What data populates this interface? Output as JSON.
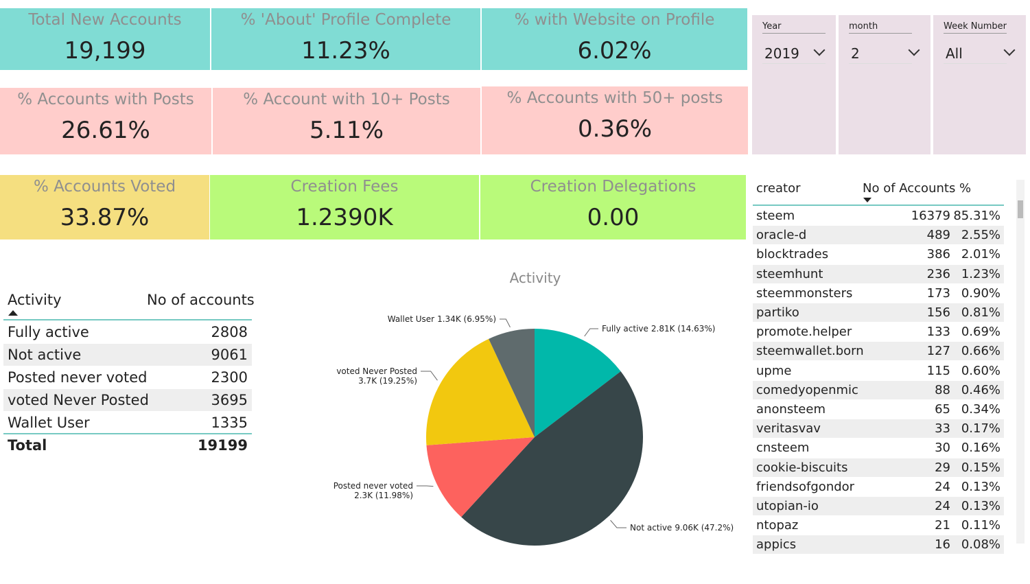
{
  "cards": [
    {
      "label": "Total New Accounts",
      "value": "19,199"
    },
    {
      "label": "% 'About' Profile Complete",
      "value": "11.23%"
    },
    {
      "label": "% with Website on Profile",
      "value": "6.02%"
    },
    {
      "label": "%  Accounts with Posts",
      "value": "26.61%"
    },
    {
      "label": "% Account with 10+ Posts",
      "value": "5.11%"
    },
    {
      "label": "% Accounts with 50+ posts",
      "value": "0.36%"
    },
    {
      "label": "% Accounts Voted",
      "value": "33.87%"
    },
    {
      "label": "Creation Fees",
      "value": "1.2390K"
    },
    {
      "label": "Creation Delegations",
      "value": "0.00"
    }
  ],
  "slicers": [
    {
      "label": "Year",
      "value": "2019"
    },
    {
      "label": "month",
      "value": "2"
    },
    {
      "label": "Week Number",
      "value": "All"
    }
  ],
  "activity_table": {
    "headers": [
      "Activity",
      "No of accounts"
    ],
    "rows": [
      [
        "Fully active",
        2808
      ],
      [
        "Not active",
        9061
      ],
      [
        "Posted never voted",
        2300
      ],
      [
        "voted Never Posted",
        3695
      ],
      [
        "Wallet User",
        1335
      ]
    ],
    "total": [
      "Total",
      19199
    ]
  },
  "creator_table": {
    "headers": [
      "creator",
      "No of Accounts",
      "%"
    ],
    "rows": [
      [
        "steem",
        16379,
        "85.31%"
      ],
      [
        "oracle-d",
        489,
        "2.55%"
      ],
      [
        "blocktrades",
        386,
        "2.01%"
      ],
      [
        "steemhunt",
        236,
        "1.23%"
      ],
      [
        "steemmonsters",
        173,
        "0.90%"
      ],
      [
        "partiko",
        156,
        "0.81%"
      ],
      [
        "promote.helper",
        133,
        "0.69%"
      ],
      [
        "steemwallet.born",
        127,
        "0.66%"
      ],
      [
        "upme",
        115,
        "0.60%"
      ],
      [
        "comedyopenmic",
        88,
        "0.46%"
      ],
      [
        "anonsteem",
        65,
        "0.34%"
      ],
      [
        "veritasvav",
        33,
        "0.17%"
      ],
      [
        "cnsteem",
        30,
        "0.16%"
      ],
      [
        "cookie-biscuits",
        29,
        "0.15%"
      ],
      [
        "friendsofgondor",
        24,
        "0.13%"
      ],
      [
        "utopian-io",
        24,
        "0.13%"
      ],
      [
        "ntopaz",
        21,
        "0.11%"
      ],
      [
        "appics",
        16,
        "0.08%"
      ]
    ]
  },
  "chart_data": {
    "type": "pie",
    "title": "Activity",
    "categories": [
      "Fully active",
      "Not active",
      "Posted never voted",
      "voted Never Posted",
      "Wallet User"
    ],
    "values": [
      2808,
      9061,
      2300,
      3695,
      1335
    ],
    "value_labels": [
      "2.81K (14.63%)",
      "9.06K (47.2%)",
      "2.3K (11.98%)",
      "3.7K (19.25%)",
      "1.34K (6.95%)"
    ],
    "colors": [
      "#01B8AA",
      "#374649",
      "#FD625E",
      "#F2C80F",
      "#5F6B6D"
    ]
  }
}
